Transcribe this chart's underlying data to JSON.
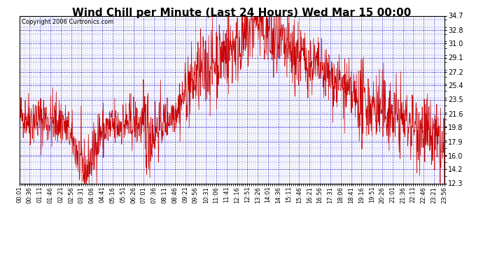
{
  "title": "Wind Chill per Minute (Last 24 Hours) Wed Mar 15 00:00",
  "copyright": "Copyright 2006 Curtronics.com",
  "line_color": "#cc0000",
  "background_color": "#ffffff",
  "plot_background": "#ffffff",
  "grid_color": "#0000cc",
  "yticks": [
    12.3,
    14.2,
    16.0,
    17.9,
    19.8,
    21.6,
    23.5,
    25.4,
    27.2,
    29.1,
    31.0,
    32.8,
    34.7
  ],
  "ylim": [
    12.3,
    34.7
  ],
  "title_fontsize": 11,
  "tick_fontsize": 7,
  "copyright_fontsize": 6,
  "xtick_labels": [
    "00:01",
    "00:36",
    "01:11",
    "01:46",
    "02:21",
    "02:56",
    "03:31",
    "04:06",
    "04:41",
    "05:16",
    "05:51",
    "06:26",
    "07:01",
    "07:36",
    "08:11",
    "08:46",
    "09:21",
    "09:56",
    "10:31",
    "11:06",
    "11:41",
    "12:16",
    "12:51",
    "13:26",
    "14:01",
    "14:36",
    "15:11",
    "15:46",
    "16:21",
    "16:56",
    "17:31",
    "18:06",
    "18:41",
    "19:16",
    "19:51",
    "20:26",
    "21:01",
    "21:36",
    "22:11",
    "22:46",
    "23:21",
    "23:56"
  ]
}
